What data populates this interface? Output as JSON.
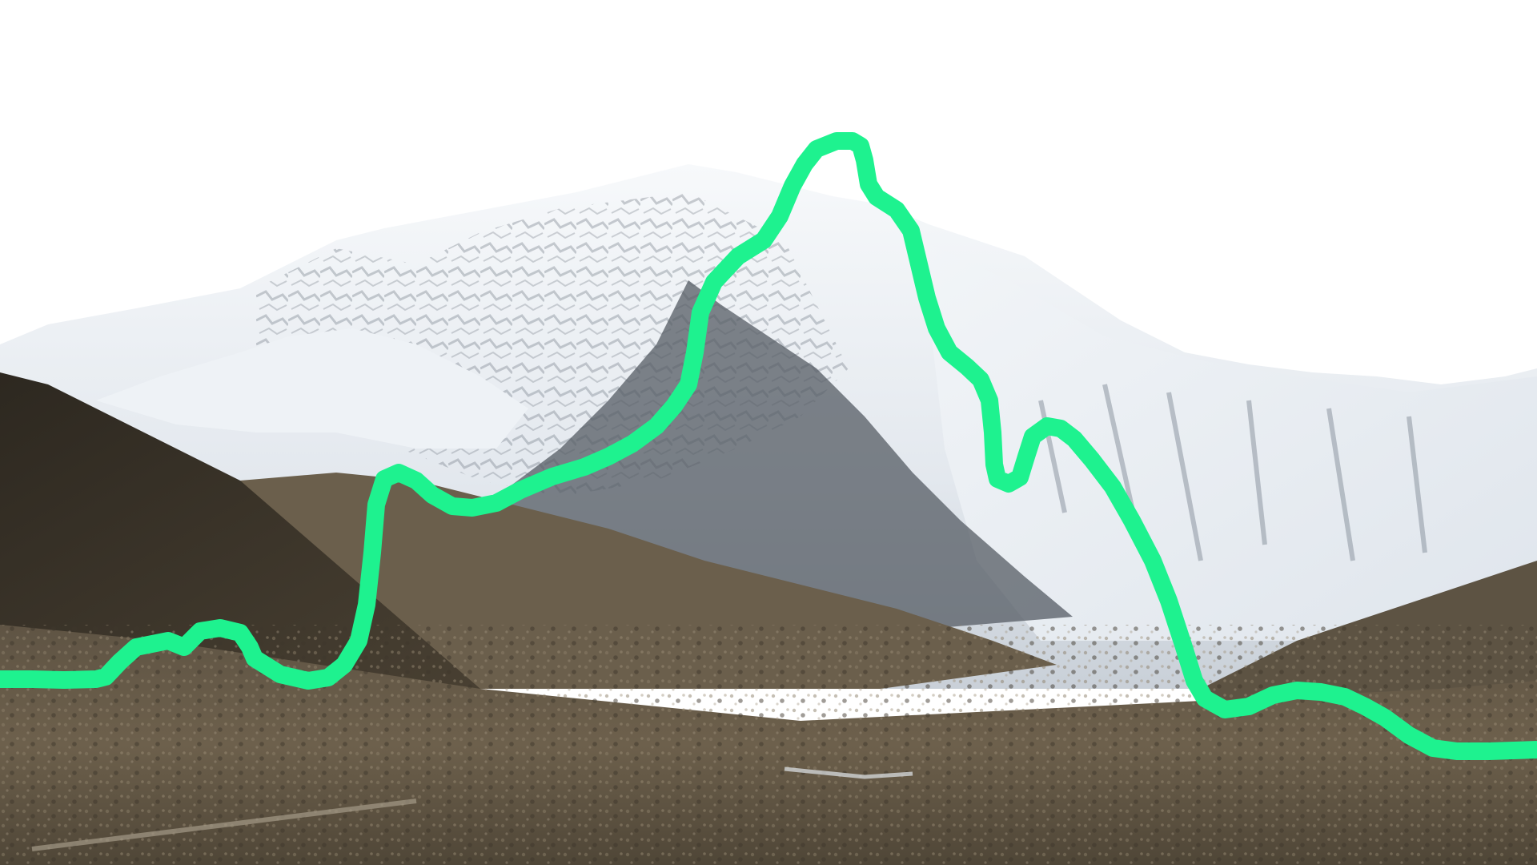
{
  "image": {
    "subject": "mountain-landscape",
    "colors": {
      "sky": "#ffffff",
      "snow": "#f4f6f8",
      "snow_shadow": "#9aa3ad",
      "rock_dark": "#3b352c",
      "slope_brown": "#6b5f4c",
      "ground": "#7a6d58",
      "outline_accent": "#1ef28f"
    },
    "overlay": {
      "icon": "ridge-outline-icon",
      "description_visible": false
    }
  }
}
